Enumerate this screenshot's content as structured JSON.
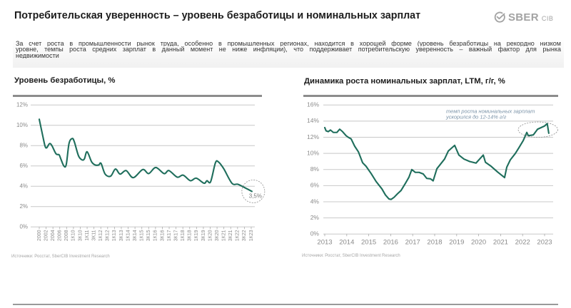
{
  "header": {
    "title": "Потребительская уверенность – уровень безработицы и номинальных зарплат",
    "logo": {
      "icon": "sber-check-circle-icon",
      "brand": "SBER",
      "suffix": "CIB"
    }
  },
  "summary": {
    "lines": [
      "За счет роста в промышленности рынок труда, особенно в промышленных регионах, находится в хорошей форме (уровень безработицы на рекордно низком",
      "уровне, темпы роста средних зарплат в данный момент не ниже инфляции), что поддерживает потребительскую уверенность – важный фактор для рынка",
      "недвижимости"
    ]
  },
  "charts": {
    "left": {
      "title": "Уровень безработицы, %",
      "source": "Источники: Росстат, SberCIB Investment Research"
    },
    "right": {
      "title": "Динамика роста номинальных зарплат, LTM, г/г, %",
      "source": "Источники: Росстат, SberCIB Investment Research"
    }
  },
  "colors": {
    "line": "#1f6e5c",
    "grid": "#c8c8c8",
    "axis_text": "#8a8a8a",
    "header_bar": "#8c8c8c",
    "annotation_text": "#7b93a8",
    "callout_stroke": "#8f8f8f",
    "logo": "#a3a3a3"
  },
  "chart_data": [
    {
      "type": "line",
      "title": "Уровень безработицы, %",
      "xlabel": "",
      "ylabel": "",
      "ylim": [
        0,
        12
      ],
      "ytick_values": [
        0,
        2,
        4,
        6,
        8,
        10,
        12
      ],
      "yticks": [
        "0%",
        "2%",
        "4%",
        "6%",
        "8%",
        "10%",
        "12%"
      ],
      "grid": true,
      "legend": "none",
      "categories": [
        "2000",
        "2002",
        "2004",
        "2006",
        "2008",
        "1К10",
        "3К10",
        "1К11",
        "3К11",
        "1К12",
        "3К12",
        "1К13",
        "3К13",
        "1К14",
        "3К14",
        "1К15",
        "3К15",
        "1К16",
        "3К16",
        "1К17",
        "3К17",
        "1К18",
        "3К18",
        "1К19",
        "3К19",
        "1К20",
        "3К20",
        "1К21",
        "3К21",
        "1К22",
        "3К22",
        "1К23"
      ],
      "series": [
        {
          "name": "Уровень безработицы",
          "points": [
            {
              "x": 2000.0,
              "y": 10.6
            },
            {
              "x": 2001.0,
              "y": 9.0
            },
            {
              "x": 2001.7,
              "y": 7.95
            },
            {
              "x": 2002.2,
              "y": 7.8
            },
            {
              "x": 2003.0,
              "y": 8.2
            },
            {
              "x": 2003.7,
              "y": 8.0
            },
            {
              "x": 2004.9,
              "y": 7.2
            },
            {
              "x": 2005.8,
              "y": 7.1
            },
            {
              "x": 2006.3,
              "y": 6.7
            },
            {
              "x": 2007.2,
              "y": 6.0
            },
            {
              "x": 2007.9,
              "y": 6.15
            },
            {
              "x": 2008.7,
              "y": 8.2
            },
            {
              "x": 2009.6,
              "y": 8.7
            },
            {
              "x": 2010.06,
              "y": 8.4
            },
            {
              "x": 2010.37,
              "y": 7.0
            },
            {
              "x": 2010.63,
              "y": 6.6
            },
            {
              "x": 2010.8,
              "y": 6.7
            },
            {
              "x": 2011.0,
              "y": 7.4
            },
            {
              "x": 2011.33,
              "y": 6.4
            },
            {
              "x": 2011.59,
              "y": 6.1
            },
            {
              "x": 2011.85,
              "y": 6.1
            },
            {
              "x": 2012.02,
              "y": 6.25
            },
            {
              "x": 2012.32,
              "y": 5.2
            },
            {
              "x": 2012.72,
              "y": 5.0
            },
            {
              "x": 2013.07,
              "y": 5.7
            },
            {
              "x": 2013.41,
              "y": 5.2
            },
            {
              "x": 2013.85,
              "y": 5.55
            },
            {
              "x": 2014.37,
              "y": 4.85
            },
            {
              "x": 2015.07,
              "y": 5.65
            },
            {
              "x": 2015.5,
              "y": 5.25
            },
            {
              "x": 2016.02,
              "y": 5.85
            },
            {
              "x": 2016.63,
              "y": 5.25
            },
            {
              "x": 2016.98,
              "y": 5.55
            },
            {
              "x": 2017.59,
              "y": 4.9
            },
            {
              "x": 2018.02,
              "y": 5.1
            },
            {
              "x": 2018.55,
              "y": 4.55
            },
            {
              "x": 2018.98,
              "y": 4.8
            },
            {
              "x": 2019.55,
              "y": 4.3
            },
            {
              "x": 2019.76,
              "y": 4.55
            },
            {
              "x": 2020.03,
              "y": 4.45
            },
            {
              "x": 2020.38,
              "y": 6.3
            },
            {
              "x": 2020.6,
              "y": 6.4
            },
            {
              "x": 2020.98,
              "y": 5.75
            },
            {
              "x": 2021.59,
              "y": 4.3
            },
            {
              "x": 2022.03,
              "y": 4.2
            },
            {
              "x": 2022.55,
              "y": 3.85
            },
            {
              "x": 2023.05,
              "y": 3.5
            }
          ]
        }
      ],
      "annotations": [
        {
          "text": "3,5%",
          "x": 2023.15,
          "y": 3.5,
          "shape": "dashed-circle"
        }
      ]
    },
    {
      "type": "line",
      "title": "Динамика роста номинальных зарплат, LTM, г/г, %",
      "xlabel": "",
      "ylabel": "",
      "ylim": [
        0,
        16
      ],
      "ytick_values": [
        0,
        2,
        4,
        6,
        8,
        10,
        12,
        14,
        16
      ],
      "yticks": [
        "0%",
        "2%",
        "4%",
        "6%",
        "8%",
        "10%",
        "12%",
        "14%",
        "16%"
      ],
      "grid": true,
      "legend": "none",
      "categories": [
        "2013",
        "2014",
        "2015",
        "2016",
        "2017",
        "2018",
        "2019",
        "2020",
        "2021",
        "2022",
        "2023"
      ],
      "series": [
        {
          "name": "Рост номинальных зарплат, LTM, г/г",
          "points": [
            {
              "x": 2013.0,
              "y": 13.2
            },
            {
              "x": 2013.06,
              "y": 12.8
            },
            {
              "x": 2013.16,
              "y": 12.7
            },
            {
              "x": 2013.26,
              "y": 12.9
            },
            {
              "x": 2013.39,
              "y": 12.6
            },
            {
              "x": 2013.55,
              "y": 12.6
            },
            {
              "x": 2013.68,
              "y": 13.0
            },
            {
              "x": 2013.81,
              "y": 12.7
            },
            {
              "x": 2013.97,
              "y": 12.2
            },
            {
              "x": 2014.07,
              "y": 12.0
            },
            {
              "x": 2014.2,
              "y": 11.8
            },
            {
              "x": 2014.36,
              "y": 10.9
            },
            {
              "x": 2014.53,
              "y": 10.2
            },
            {
              "x": 2014.72,
              "y": 8.85
            },
            {
              "x": 2014.88,
              "y": 8.4
            },
            {
              "x": 2015.11,
              "y": 7.5
            },
            {
              "x": 2015.34,
              "y": 6.5
            },
            {
              "x": 2015.6,
              "y": 5.6
            },
            {
              "x": 2015.76,
              "y": 4.85
            },
            {
              "x": 2015.92,
              "y": 4.35
            },
            {
              "x": 2016.02,
              "y": 4.3
            },
            {
              "x": 2016.15,
              "y": 4.55
            },
            {
              "x": 2016.31,
              "y": 5.0
            },
            {
              "x": 2016.47,
              "y": 5.4
            },
            {
              "x": 2016.67,
              "y": 6.3
            },
            {
              "x": 2016.83,
              "y": 7.05
            },
            {
              "x": 2016.96,
              "y": 8.0
            },
            {
              "x": 2017.12,
              "y": 7.65
            },
            {
              "x": 2017.29,
              "y": 7.65
            },
            {
              "x": 2017.48,
              "y": 7.45
            },
            {
              "x": 2017.64,
              "y": 6.9
            },
            {
              "x": 2017.81,
              "y": 6.85
            },
            {
              "x": 2017.93,
              "y": 6.6
            },
            {
              "x": 2018.1,
              "y": 8.1
            },
            {
              "x": 2018.26,
              "y": 8.65
            },
            {
              "x": 2018.45,
              "y": 9.3
            },
            {
              "x": 2018.62,
              "y": 10.3
            },
            {
              "x": 2018.91,
              "y": 11.0
            },
            {
              "x": 2019.1,
              "y": 9.8
            },
            {
              "x": 2019.33,
              "y": 9.3
            },
            {
              "x": 2019.59,
              "y": 9.0
            },
            {
              "x": 2019.88,
              "y": 8.8
            },
            {
              "x": 2020.21,
              "y": 9.8
            },
            {
              "x": 2020.31,
              "y": 8.9
            },
            {
              "x": 2020.57,
              "y": 8.4
            },
            {
              "x": 2020.86,
              "y": 7.7
            },
            {
              "x": 2021.18,
              "y": 7.0
            },
            {
              "x": 2021.28,
              "y": 8.3
            },
            {
              "x": 2021.44,
              "y": 9.2
            },
            {
              "x": 2021.67,
              "y": 10.0
            },
            {
              "x": 2021.83,
              "y": 10.7
            },
            {
              "x": 2022.03,
              "y": 11.6
            },
            {
              "x": 2022.19,
              "y": 12.6
            },
            {
              "x": 2022.26,
              "y": 12.2
            },
            {
              "x": 2022.49,
              "y": 12.3
            },
            {
              "x": 2022.68,
              "y": 13.0
            },
            {
              "x": 2023.0,
              "y": 13.4
            },
            {
              "x": 2023.12,
              "y": 13.7
            },
            {
              "x": 2023.19,
              "y": 12.5
            }
          ]
        }
      ],
      "annotations": [
        {
          "text_lines": [
            "темп роста номинальных зарплат",
            "ускорился до 12-14% г/г"
          ],
          "text_pos": {
            "x": 2018.52,
            "y": 15.2
          },
          "shape": "dashed-ellipse",
          "region": {
            "x": [
              2021.8,
              2023.6
            ],
            "y": [
              12.0,
              13.9
            ]
          }
        }
      ]
    }
  ]
}
